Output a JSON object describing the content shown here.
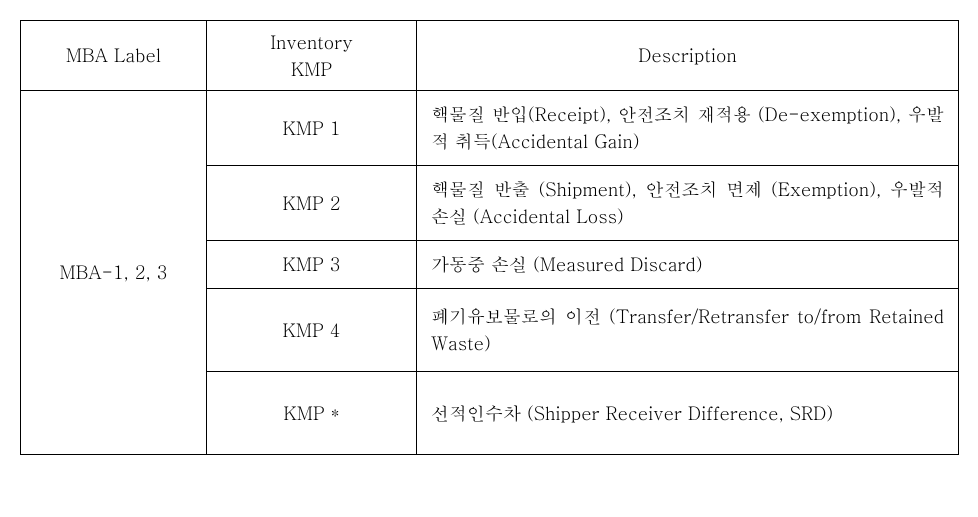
{
  "table": {
    "columns": {
      "mba": "MBA Label",
      "kmp": "Inventory\nKMP",
      "desc": "Description"
    },
    "mba_label": "MBA-1, 2, 3",
    "rows": [
      {
        "kmp": "KMP 1",
        "desc": "핵물질 반입(Receipt), 안전조치 재적용 (De-exemption), 우발적 취득(Accidental Gain)"
      },
      {
        "kmp": "KMP 2",
        "desc": "핵물질 반출 (Shipment), 안전조치 면제 (Exemption), 우발적 손실 (Accidental Loss)"
      },
      {
        "kmp": "KMP 3",
        "desc": "가동중 손실 (Measured Discard)"
      },
      {
        "kmp": "KMP 4",
        "desc": "폐기유보물로의 이전 (Transfer/Retransfer to/from Retained Waste)"
      },
      {
        "kmp": "KMP *",
        "desc": "선적인수차 (Shipper Receiver Difference, SRD)"
      }
    ],
    "border_color": "#000000",
    "background_color": "#ffffff",
    "font_size_pt": 14
  }
}
